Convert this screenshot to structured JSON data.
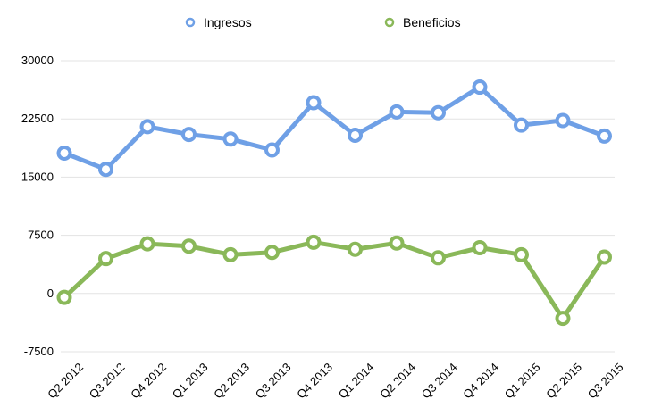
{
  "chart_data": {
    "type": "line",
    "title": "",
    "xlabel": "",
    "ylabel": "",
    "categories": [
      "Q2 2012",
      "Q3 2012",
      "Q4 2012",
      "Q1 2013",
      "Q2 2013",
      "Q3 2013",
      "Q4 2013",
      "Q1 2014",
      "Q2 2014",
      "Q3 2014",
      "Q4 2014",
      "Q1 2015",
      "Q2 2015",
      "Q3 2015"
    ],
    "ylim": [
      -7500,
      30000
    ],
    "yticks": [
      -7500,
      0,
      7500,
      15000,
      22500,
      30000
    ],
    "ytick_labels": [
      "-7500",
      "0",
      "7500",
      "15000",
      "22500",
      "30000"
    ],
    "grid": true,
    "legend_position": "top-center",
    "series": [
      {
        "name": "Ingresos",
        "color": "#6fa0e6",
        "values": [
          18100,
          16000,
          21500,
          20500,
          19900,
          18500,
          24600,
          20400,
          23400,
          23300,
          26600,
          21700,
          22300,
          20300
        ]
      },
      {
        "name": "Beneficios",
        "color": "#8ab859",
        "values": [
          -500,
          4500,
          6400,
          6100,
          5000,
          5300,
          6600,
          5700,
          6500,
          4600,
          5900,
          5000,
          -3200,
          4700
        ]
      }
    ]
  }
}
